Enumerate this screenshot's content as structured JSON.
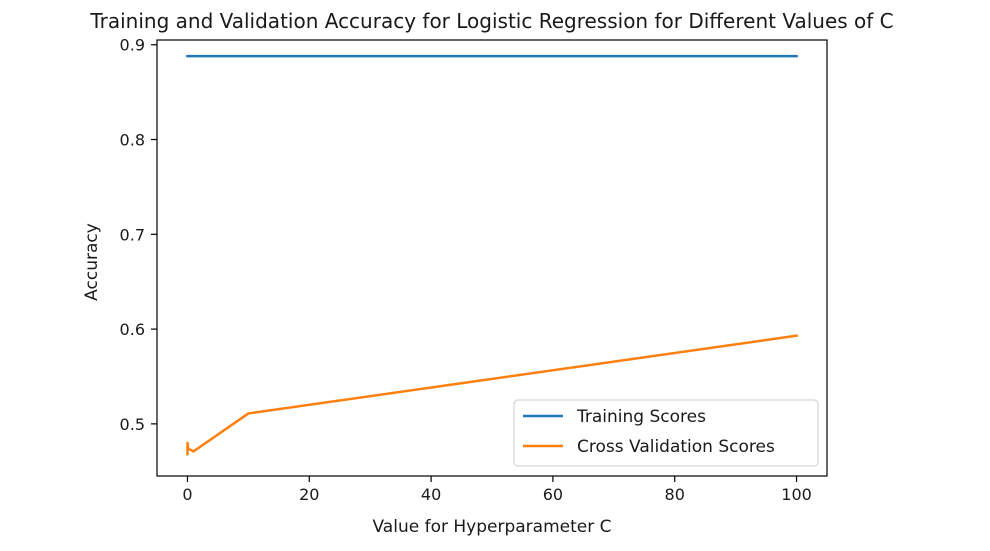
{
  "chart_data": {
    "type": "line",
    "title": "Training and Validation Accuracy for Logistic Regression for Different Values of C",
    "xlabel": "Value for Hyperparameter C",
    "ylabel": "Accuracy",
    "xlim": [
      -5,
      105
    ],
    "ylim": [
      0.445,
      0.905
    ],
    "xticks": [
      0,
      20,
      40,
      60,
      80,
      100
    ],
    "xtick_labels": [
      "0",
      "20",
      "40",
      "60",
      "80",
      "100"
    ],
    "yticks": [
      0.5,
      0.6,
      0.7,
      0.8,
      0.9
    ],
    "ytick_labels": [
      "0.5",
      "0.6",
      "0.7",
      "0.8",
      "0.9"
    ],
    "grid": false,
    "legend_position": "lower-right",
    "series": [
      {
        "name": "Training Scores",
        "color": "#1f77b4",
        "x": [
          0.001,
          0.01,
          0.1,
          1,
          10,
          100
        ],
        "y": [
          0.888,
          0.888,
          0.888,
          0.888,
          0.888,
          0.888
        ]
      },
      {
        "name": "Cross Validation Scores",
        "color": "#ff7f0e",
        "x": [
          0.001,
          0.01,
          0.1,
          1,
          10,
          100
        ],
        "y": [
          0.468,
          0.48,
          0.474,
          0.471,
          0.511,
          0.593
        ]
      }
    ]
  }
}
